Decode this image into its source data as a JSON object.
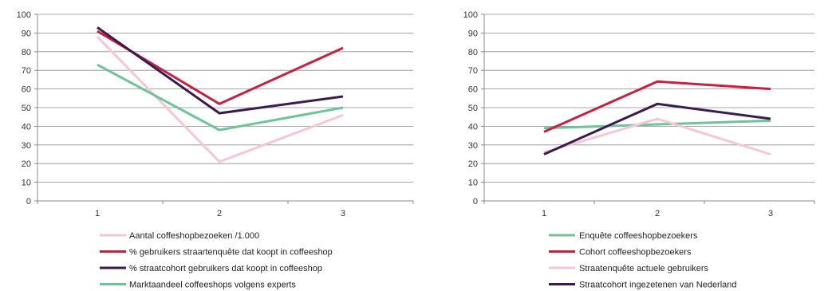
{
  "chart_data": [
    {
      "type": "line",
      "x": [
        "1",
        "2",
        "3"
      ],
      "ylim": [
        0,
        100
      ],
      "yticks": [
        0,
        10,
        20,
        30,
        40,
        50,
        60,
        70,
        80,
        90,
        100
      ],
      "grid": true,
      "legend_position": "bottom",
      "series": [
        {
          "name": "Aantal coffeshopbezoeken /1.000",
          "color": "#f7c6d4",
          "values": [
            88,
            21,
            46
          ]
        },
        {
          "name": "% gebruikers straartenquête dat koopt in coffeeshop",
          "color": "#c8203e",
          "values": [
            91,
            52,
            82
          ]
        },
        {
          "name": "% straatcohort gebruikers dat koopt in coffeeshop",
          "color": "#3a1a4f",
          "values": [
            93,
            47,
            56
          ]
        },
        {
          "name": "Marktaandeel coffeeshops volgens experts",
          "color": "#6cc59a",
          "values": [
            73,
            38,
            50
          ]
        }
      ]
    },
    {
      "type": "line",
      "x": [
        "1",
        "2",
        "3"
      ],
      "ylim": [
        0,
        100
      ],
      "yticks": [
        0,
        10,
        20,
        30,
        40,
        50,
        60,
        70,
        80,
        90,
        100
      ],
      "grid": true,
      "legend_position": "bottom",
      "series": [
        {
          "name": "Enquête coffeeshopbezoekers",
          "color": "#6cc59a",
          "values": [
            39,
            41,
            43
          ]
        },
        {
          "name": "Cohort coffeeshopbezoekers",
          "color": "#c8203e",
          "values": [
            37,
            64,
            60
          ]
        },
        {
          "name": "Straatenquête actuele gebruikers",
          "color": "#f7c6d4",
          "values": [
            26,
            44,
            25
          ]
        },
        {
          "name": "Straatcohort ingezetenen van Nederland",
          "color": "#3a1a4f",
          "values": [
            25,
            52,
            44
          ]
        }
      ]
    }
  ]
}
